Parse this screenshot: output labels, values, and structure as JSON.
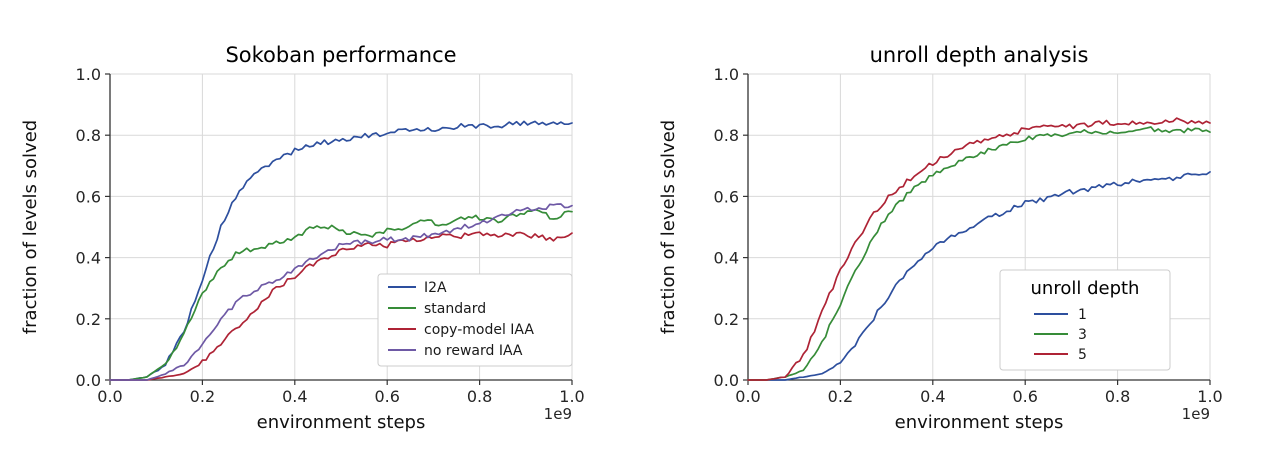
{
  "page": {
    "background": "#ffffff"
  },
  "chart_data": [
    {
      "type": "line",
      "title": "Sokoban performance",
      "xlabel": "environment steps",
      "ylabel": "fraction of levels solved",
      "x_offset_label": "1e9",
      "xlim": [
        0.0,
        1.0
      ],
      "ylim": [
        0.0,
        1.0
      ],
      "grid": true,
      "legend_position": "lower right",
      "xtick_labels": [
        "0.0",
        "0.2",
        "0.4",
        "0.6",
        "0.8",
        "1.0"
      ],
      "ytick_labels": [
        "0.0",
        "0.2",
        "0.4",
        "0.6",
        "0.8",
        "1.0"
      ],
      "x": [
        0.0,
        0.04,
        0.08,
        0.12,
        0.16,
        0.2,
        0.24,
        0.28,
        0.32,
        0.36,
        0.4,
        0.44,
        0.48,
        0.52,
        0.56,
        0.6,
        0.64,
        0.68,
        0.72,
        0.76,
        0.8,
        0.84,
        0.88,
        0.92,
        0.96,
        1.0
      ],
      "series": [
        {
          "name": "I2A",
          "color": "#2d4f9e",
          "values": [
            0.0,
            0.0,
            0.01,
            0.05,
            0.16,
            0.33,
            0.5,
            0.62,
            0.68,
            0.72,
            0.75,
            0.77,
            0.78,
            0.79,
            0.8,
            0.8,
            0.82,
            0.82,
            0.82,
            0.83,
            0.83,
            0.83,
            0.84,
            0.84,
            0.84,
            0.84
          ]
        },
        {
          "name": "standard",
          "color": "#368c38",
          "values": [
            0.0,
            0.0,
            0.01,
            0.05,
            0.15,
            0.28,
            0.37,
            0.42,
            0.43,
            0.45,
            0.46,
            0.5,
            0.5,
            0.48,
            0.47,
            0.49,
            0.5,
            0.52,
            0.51,
            0.53,
            0.53,
            0.52,
            0.54,
            0.55,
            0.53,
            0.55
          ]
        },
        {
          "name": "copy-model IAA",
          "color": "#ae2335",
          "values": [
            0.0,
            0.0,
            0.0,
            0.01,
            0.02,
            0.06,
            0.12,
            0.18,
            0.24,
            0.3,
            0.34,
            0.38,
            0.41,
            0.43,
            0.45,
            0.44,
            0.46,
            0.46,
            0.47,
            0.47,
            0.48,
            0.47,
            0.48,
            0.47,
            0.46,
            0.48
          ]
        },
        {
          "name": "no reward IAA",
          "color": "#6e59a5",
          "values": [
            0.0,
            0.0,
            0.0,
            0.02,
            0.05,
            0.12,
            0.2,
            0.26,
            0.3,
            0.33,
            0.36,
            0.4,
            0.43,
            0.45,
            0.45,
            0.46,
            0.46,
            0.47,
            0.48,
            0.5,
            0.51,
            0.53,
            0.55,
            0.56,
            0.57,
            0.57
          ]
        }
      ]
    },
    {
      "type": "line",
      "title": "unroll depth analysis",
      "xlabel": "environment steps",
      "ylabel": "fraction of levels solved",
      "x_offset_label": "1e9",
      "xlim": [
        0.0,
        1.0
      ],
      "ylim": [
        0.0,
        1.0
      ],
      "grid": true,
      "legend_position": "lower right",
      "legend_title": "unroll depth",
      "xtick_labels": [
        "0.0",
        "0.2",
        "0.4",
        "0.6",
        "0.8",
        "1.0"
      ],
      "ytick_labels": [
        "0.0",
        "0.2",
        "0.4",
        "0.6",
        "0.8",
        "1.0"
      ],
      "x": [
        0.0,
        0.04,
        0.08,
        0.12,
        0.16,
        0.2,
        0.24,
        0.28,
        0.32,
        0.36,
        0.4,
        0.44,
        0.48,
        0.52,
        0.56,
        0.6,
        0.64,
        0.68,
        0.72,
        0.76,
        0.8,
        0.84,
        0.88,
        0.92,
        0.96,
        1.0
      ],
      "series": [
        {
          "name": "1",
          "color": "#2d4f9e",
          "values": [
            0.0,
            0.0,
            0.0,
            0.01,
            0.02,
            0.06,
            0.13,
            0.22,
            0.31,
            0.38,
            0.43,
            0.47,
            0.5,
            0.53,
            0.55,
            0.58,
            0.59,
            0.61,
            0.62,
            0.63,
            0.64,
            0.65,
            0.66,
            0.66,
            0.67,
            0.68
          ]
        },
        {
          "name": "3",
          "color": "#368c38",
          "values": [
            0.0,
            0.0,
            0.01,
            0.03,
            0.12,
            0.25,
            0.38,
            0.49,
            0.57,
            0.63,
            0.67,
            0.7,
            0.73,
            0.75,
            0.77,
            0.79,
            0.8,
            0.8,
            0.81,
            0.81,
            0.81,
            0.82,
            0.82,
            0.81,
            0.82,
            0.81
          ]
        },
        {
          "name": "5",
          "color": "#ae2335",
          "values": [
            0.0,
            0.0,
            0.01,
            0.08,
            0.22,
            0.36,
            0.47,
            0.56,
            0.62,
            0.67,
            0.71,
            0.74,
            0.77,
            0.79,
            0.8,
            0.82,
            0.83,
            0.83,
            0.83,
            0.84,
            0.84,
            0.84,
            0.84,
            0.85,
            0.84,
            0.84
          ]
        }
      ]
    }
  ]
}
